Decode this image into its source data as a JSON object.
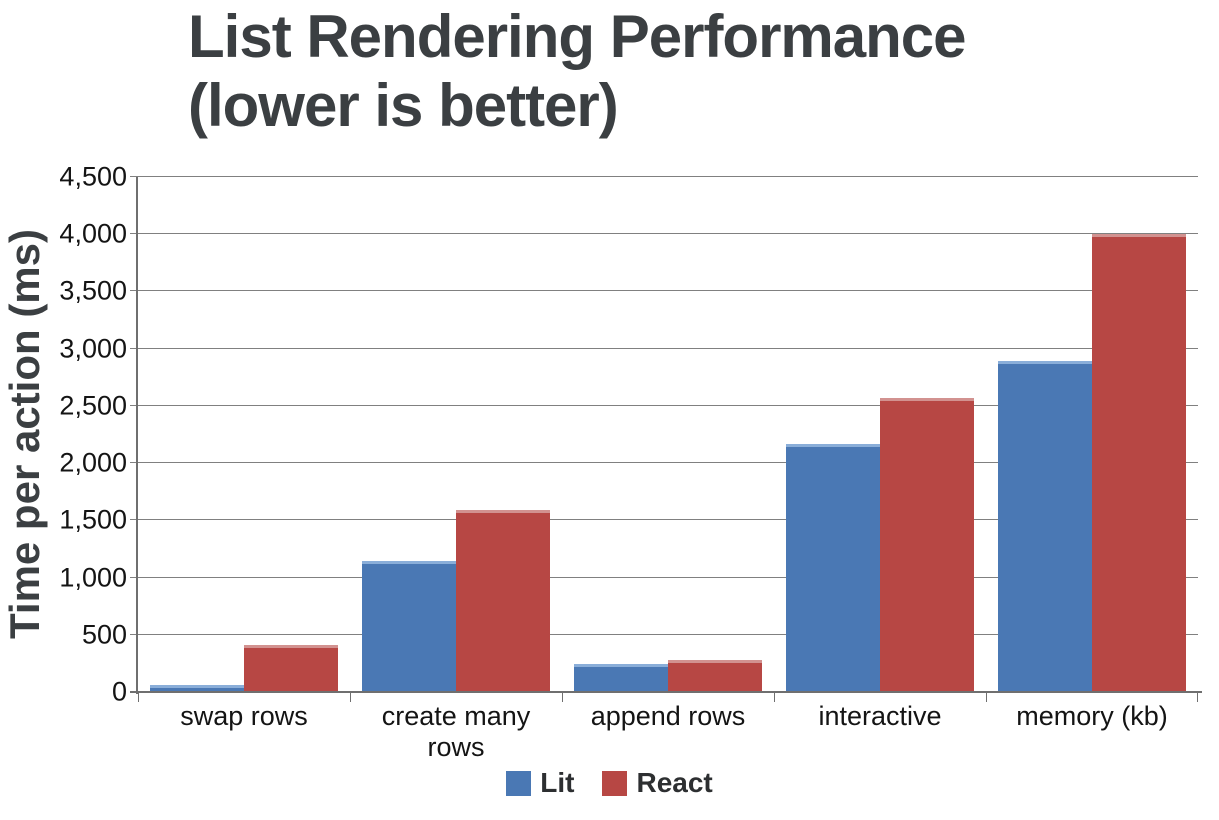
{
  "title": {
    "line1": "List Rendering Performance",
    "line2": "(lower is better)"
  },
  "chart_data": {
    "type": "bar",
    "title": "List Rendering Performance (lower is better)",
    "ylabel": "Time per action (ms)",
    "xlabel": "",
    "ylim": [
      0,
      4500
    ],
    "ytick_interval": 500,
    "ytick_labels": [
      "0",
      "500",
      "1,000",
      "1,500",
      "2,000",
      "2,500",
      "3,000",
      "3,500",
      "4,000",
      "4,500"
    ],
    "grid": true,
    "legend_position": "bottom-center",
    "categories": [
      "swap rows",
      "create many rows",
      "append rows",
      "interactive",
      "memory (kb)"
    ],
    "series": [
      {
        "name": "Lit",
        "color": "#4a78b4",
        "highlight": "#8aaed9",
        "values": [
          60,
          1145,
          245,
          2170,
          2890
        ]
      },
      {
        "name": "React",
        "color": "#b74744",
        "highlight": "#d29290",
        "values": [
          410,
          1590,
          280,
          2570,
          4000
        ]
      }
    ],
    "colors": {
      "gridline": "#808080",
      "axis": "#6f6f6f",
      "title_text": "#3b3f42",
      "tick_text": "#141414"
    }
  }
}
